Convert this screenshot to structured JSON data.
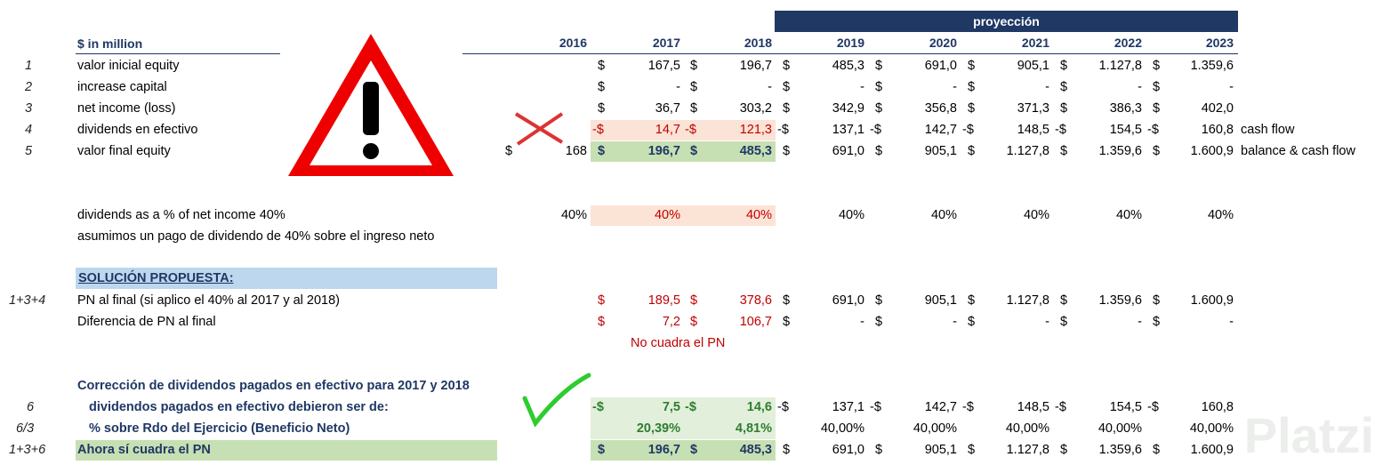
{
  "header": {
    "units": "$ in million",
    "projection": "proyección",
    "years": [
      "2016",
      "2017",
      "2018",
      "2019",
      "2020",
      "2021",
      "2022",
      "2023"
    ]
  },
  "rows": [
    {
      "num": "1",
      "label": "valor inicial equity",
      "v2016": "",
      "vals": [
        [
          "$",
          "167,5"
        ],
        [
          "$",
          "196,7"
        ],
        [
          "$",
          "485,3"
        ],
        [
          "$",
          "691,0"
        ],
        [
          "$",
          "905,1"
        ],
        [
          "$",
          "1.127,8"
        ],
        [
          "$",
          "1.359,6"
        ]
      ],
      "note": ""
    },
    {
      "num": "2",
      "label": "increase capital",
      "v2016": "",
      "vals": [
        [
          "$",
          "-"
        ],
        [
          "$",
          "-"
        ],
        [
          "$",
          "-"
        ],
        [
          "$",
          "-"
        ],
        [
          "$",
          "-"
        ],
        [
          "$",
          "-"
        ],
        [
          "$",
          "-"
        ]
      ],
      "note": ""
    },
    {
      "num": "3",
      "label": "net income (loss)",
      "v2016": "",
      "vals": [
        [
          "$",
          "36,7"
        ],
        [
          "$",
          "303,2"
        ],
        [
          "$",
          "342,9"
        ],
        [
          "$",
          "356,8"
        ],
        [
          "$",
          "371,3"
        ],
        [
          "$",
          "386,3"
        ],
        [
          "$",
          "402,0"
        ]
      ],
      "note": ""
    },
    {
      "num": "4",
      "label": "dividends en efectivo",
      "v2016": "",
      "vals": [
        [
          "-$",
          "14,7"
        ],
        [
          "-$",
          "121,3"
        ],
        [
          "-$",
          "137,1"
        ],
        [
          "-$",
          "142,7"
        ],
        [
          "-$",
          "148,5"
        ],
        [
          "-$",
          "154,5"
        ],
        [
          "-$",
          "160,8"
        ]
      ],
      "note": "cash flow"
    },
    {
      "num": "5",
      "label": "valor final equity",
      "v2016": "168",
      "cur2016": "$",
      "vals": [
        [
          "$",
          "196,7"
        ],
        [
          "$",
          "485,3"
        ],
        [
          "$",
          "691,0"
        ],
        [
          "$",
          "905,1"
        ],
        [
          "$",
          "1.127,8"
        ],
        [
          "$",
          "1.359,6"
        ],
        [
          "$",
          "1.600,9"
        ]
      ],
      "note": "balance & cash flow"
    }
  ],
  "dividends_pct": {
    "label": "dividends as a % of net income 40%",
    "vals": [
      "40%",
      "40%",
      "40%",
      "40%",
      "40%",
      "40%",
      "40%",
      "40%"
    ],
    "note": "asumimos un pago de dividendo de 40% sobre el ingreso neto"
  },
  "solution": {
    "title": "SOLUCIÓN PROPUESTA:",
    "pn_num": "1+3+4",
    "pn_label": "PN al final (si aplico el 40% al 2017 y al 2018)",
    "pn_vals": [
      [
        "$",
        "189,5"
      ],
      [
        "$",
        "378,6"
      ],
      [
        "$",
        "691,0"
      ],
      [
        "$",
        "905,1"
      ],
      [
        "$",
        "1.127,8"
      ],
      [
        "$",
        "1.359,6"
      ],
      [
        "$",
        "1.600,9"
      ]
    ],
    "diff_label": "Diferencia de PN al final",
    "diff_vals": [
      [
        "$",
        "7,2"
      ],
      [
        "$",
        "106,7"
      ],
      [
        "$",
        "-"
      ],
      [
        "$",
        "-"
      ],
      [
        "$",
        "-"
      ],
      [
        "$",
        "-"
      ],
      [
        "$",
        "-"
      ]
    ],
    "no_cuadra": "No cuadra el PN"
  },
  "correction": {
    "title": "Corrección de dividendos pagados en efectivo para 2017 y 2018",
    "div_num": "6",
    "div_label": "dividendos pagados en efectivo debieron ser de:",
    "div_vals": [
      [
        "-$",
        "7,5"
      ],
      [
        "-$",
        "14,6"
      ],
      [
        "-$",
        "137,1"
      ],
      [
        "-$",
        "142,7"
      ],
      [
        "-$",
        "148,5"
      ],
      [
        "-$",
        "154,5"
      ],
      [
        "-$",
        "160,8"
      ]
    ],
    "pct_num": "6/3",
    "pct_label": "% sobre Rdo del Ejercicio (Beneficio Neto)",
    "pct_vals": [
      "20,39%",
      "4,81%",
      "40,00%",
      "40,00%",
      "40,00%",
      "40,00%",
      "40,00%"
    ],
    "ok_num": "1+3+6",
    "ok_label": "Ahora sí cuadra el PN",
    "ok_vals": [
      [
        "$",
        "196,7"
      ],
      [
        "$",
        "485,3"
      ],
      [
        "$",
        "691,0"
      ],
      [
        "$",
        "905,1"
      ],
      [
        "$",
        "1.127,8"
      ],
      [
        "$",
        "1.359,6"
      ],
      [
        "$",
        "1.600,9"
      ]
    ]
  },
  "watermark": "Platzi",
  "colors": {
    "navy": "#1f3864",
    "red": "#c00000",
    "pink": "#fbe3d6",
    "green": "#c6e0b4",
    "blue": "#bdd7ee"
  }
}
